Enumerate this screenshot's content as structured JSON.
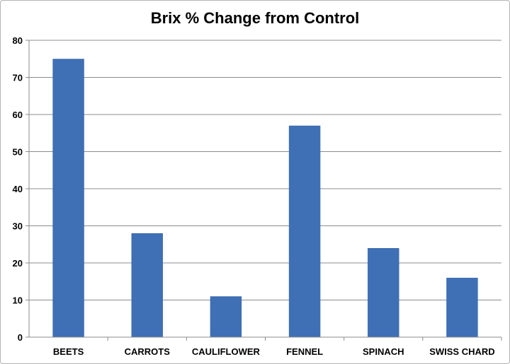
{
  "chart_data": {
    "type": "bar",
    "title": "Brix % Change from Control",
    "xlabel": "",
    "ylabel": "",
    "categories": [
      "BEETS",
      "CARROTS",
      "CAULIFLOWER",
      "FENNEL",
      "SPINACH",
      "SWISS CHARD"
    ],
    "values": [
      75,
      28,
      11,
      57,
      24,
      16
    ],
    "ylim": [
      0,
      80
    ],
    "yticks": [
      "0",
      "10",
      "20",
      "30",
      "40",
      "50",
      "60",
      "70",
      "80"
    ],
    "grid": true,
    "legend": "none",
    "bar_color": "#3f6fb4",
    "grid_color": "#8c8c8c"
  }
}
